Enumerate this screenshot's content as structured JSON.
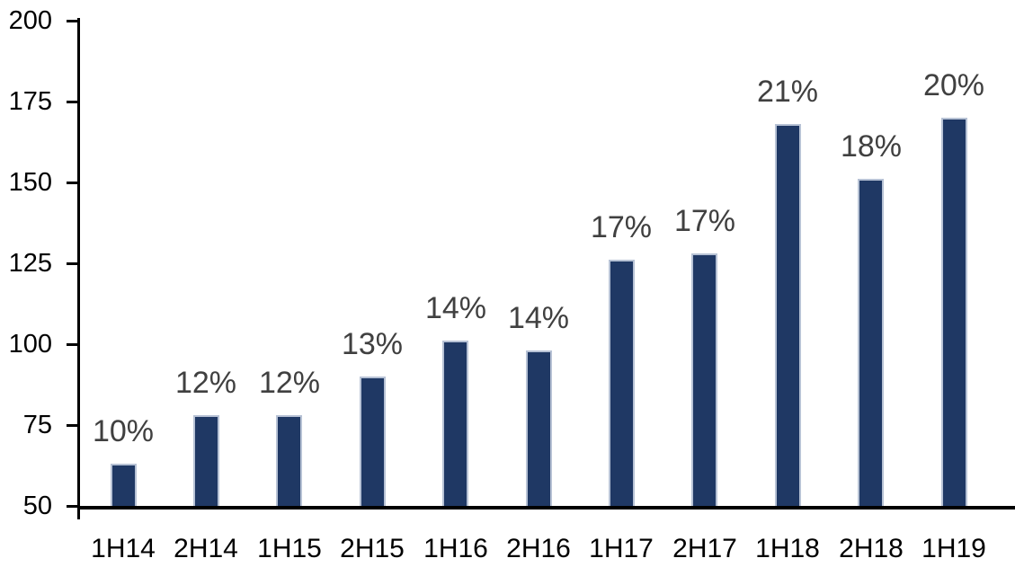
{
  "chart_data": {
    "type": "bar",
    "categories": [
      "1H14",
      "2H14",
      "1H15",
      "2H15",
      "1H16",
      "2H16",
      "1H17",
      "2H17",
      "1H18",
      "2H18",
      "1H19"
    ],
    "values": [
      63,
      78,
      78,
      90,
      101,
      98,
      126,
      128,
      168,
      151,
      170
    ],
    "bar_labels": [
      "10%",
      "12%",
      "12%",
      "13%",
      "14%",
      "14%",
      "17%",
      "17%",
      "21%",
      "18%",
      "20%"
    ],
    "y_ticks": [
      "50",
      "75",
      "100",
      "125",
      "150",
      "175",
      "200"
    ],
    "ylim": [
      50,
      200
    ],
    "grid": "off",
    "legend": "none",
    "bar_color": "#1f3864",
    "bar_border_color": "#b7c2d5",
    "value_label_color": "#404040",
    "axis_color": "#000000",
    "background_color": "#ffffff"
  }
}
